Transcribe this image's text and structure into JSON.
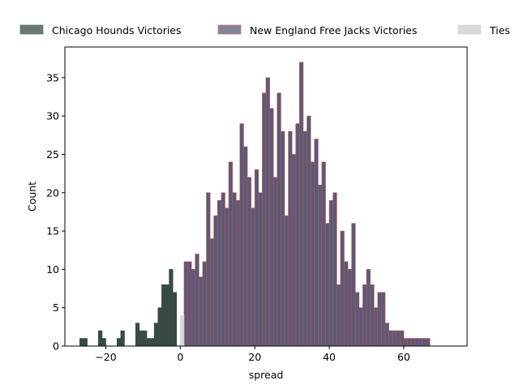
{
  "chart_data": {
    "type": "bar",
    "xlabel": "spread",
    "ylabel": "Count",
    "xlim": [
      -31,
      77
    ],
    "ylim": [
      0,
      39
    ],
    "x_ticks": [
      -20,
      0,
      20,
      40,
      60
    ],
    "y_ticks": [
      0,
      5,
      10,
      15,
      20,
      25,
      30,
      35
    ],
    "tick_labels_x": [
      "−20",
      "0",
      "20",
      "40",
      "60"
    ],
    "tick_labels_y": [
      "0",
      "5",
      "10",
      "15",
      "20",
      "25",
      "30",
      "35"
    ],
    "bin_width": 1,
    "legend_placement": "top, outside plot",
    "series": [
      {
        "name": "Chicago Hounds Victories",
        "color": "#3a4a43",
        "edgecolor": "#2f4f3f",
        "bins": [
          [
            -27,
            1
          ],
          [
            -26,
            1
          ],
          [
            -22,
            2
          ],
          [
            -21,
            1
          ],
          [
            -17,
            1
          ],
          [
            -16,
            2
          ],
          [
            -12,
            3
          ],
          [
            -11,
            2
          ],
          [
            -10,
            2
          ],
          [
            -9,
            1
          ],
          [
            -8,
            1
          ],
          [
            -7,
            3
          ],
          [
            -6,
            5
          ],
          [
            -5,
            8
          ],
          [
            -4,
            8
          ],
          [
            -3,
            10
          ],
          [
            -2,
            7
          ]
        ]
      },
      {
        "name": "New England Free Jacks Victories",
        "color": "#5a5a78",
        "edgecolor": "#c0504d",
        "bins": [
          [
            1,
            11
          ],
          [
            2,
            11
          ],
          [
            3,
            10
          ],
          [
            4,
            12
          ],
          [
            5,
            9
          ],
          [
            6,
            11
          ],
          [
            7,
            20
          ],
          [
            8,
            14
          ],
          [
            9,
            17
          ],
          [
            10,
            19
          ],
          [
            11,
            20
          ],
          [
            12,
            18
          ],
          [
            13,
            24
          ],
          [
            14,
            20
          ],
          [
            15,
            19
          ],
          [
            16,
            29
          ],
          [
            17,
            26
          ],
          [
            18,
            22
          ],
          [
            19,
            18
          ],
          [
            20,
            23
          ],
          [
            21,
            20
          ],
          [
            22,
            33
          ],
          [
            23,
            35
          ],
          [
            24,
            31
          ],
          [
            25,
            22
          ],
          [
            26,
            33
          ],
          [
            27,
            28
          ],
          [
            28,
            17
          ],
          [
            29,
            28
          ],
          [
            30,
            25
          ],
          [
            31,
            29
          ],
          [
            32,
            37
          ],
          [
            33,
            28
          ],
          [
            34,
            30
          ],
          [
            35,
            24
          ],
          [
            36,
            27
          ],
          [
            37,
            21
          ],
          [
            38,
            24
          ],
          [
            39,
            16
          ],
          [
            40,
            19
          ],
          [
            41,
            20
          ],
          [
            42,
            8
          ],
          [
            43,
            15
          ],
          [
            44,
            11
          ],
          [
            45,
            10
          ],
          [
            46,
            16
          ],
          [
            47,
            7
          ],
          [
            48,
            5
          ],
          [
            49,
            8
          ],
          [
            50,
            10
          ],
          [
            51,
            8
          ],
          [
            52,
            5
          ],
          [
            53,
            7
          ],
          [
            54,
            7
          ],
          [
            55,
            3
          ],
          [
            56,
            2
          ],
          [
            57,
            2
          ],
          [
            58,
            2
          ],
          [
            59,
            2
          ],
          [
            60,
            1
          ],
          [
            61,
            1
          ],
          [
            62,
            1
          ],
          [
            63,
            1
          ],
          [
            64,
            1
          ],
          [
            65,
            1
          ],
          [
            66,
            1
          ]
        ]
      },
      {
        "name": "Ties",
        "color": "#d9d9d9",
        "edgecolor": "#d9d9d9",
        "bins": [
          [
            0,
            4
          ]
        ]
      }
    ]
  }
}
